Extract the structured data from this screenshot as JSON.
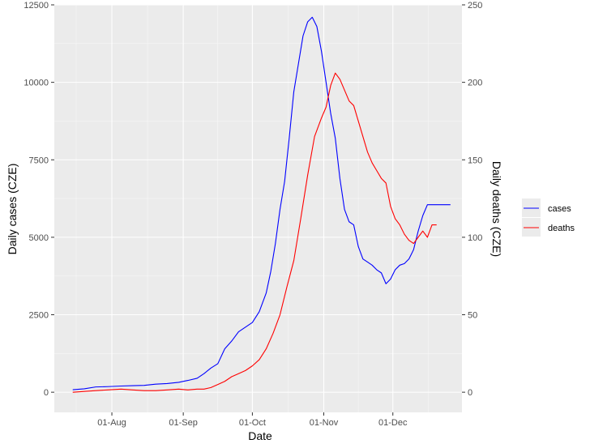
{
  "chart_data": {
    "type": "line",
    "xlabel": "Date",
    "ylabel_left": "Daily cases (CZE)",
    "ylabel_right": "Daily deaths (CZE)",
    "x_range": [
      "2020-07-07",
      "2020-12-31"
    ],
    "ylim_left": [
      -650,
      12500
    ],
    "ylim_right": [
      -13,
      250
    ],
    "x_ticks": [
      {
        "date": "2020-08-01",
        "label": "01-Aug"
      },
      {
        "date": "2020-09-01",
        "label": "01-Sep"
      },
      {
        "date": "2020-10-01",
        "label": "01-Oct"
      },
      {
        "date": "2020-11-01",
        "label": "01-Nov"
      },
      {
        "date": "2020-12-01",
        "label": "01-Dec"
      }
    ],
    "y_ticks_left": [
      0,
      2500,
      5000,
      7500,
      10000,
      12500
    ],
    "y_tick_labels_left": [
      "0",
      "2500",
      "5000",
      "7500",
      "10000",
      "12500"
    ],
    "y_ticks_right": [
      0,
      50,
      100,
      150,
      200,
      250
    ],
    "y_tick_labels_right": [
      "0",
      "50",
      "100",
      "150",
      "200",
      "250"
    ],
    "grid": true,
    "legend_position": "right",
    "series": [
      {
        "name": "cases",
        "axis": "left",
        "color": "#0000ff",
        "x": [
          "2020-07-15",
          "2020-07-20",
          "2020-07-25",
          "2020-07-30",
          "2020-08-05",
          "2020-08-10",
          "2020-08-15",
          "2020-08-20",
          "2020-08-25",
          "2020-08-30",
          "2020-09-03",
          "2020-09-07",
          "2020-09-10",
          "2020-09-13",
          "2020-09-16",
          "2020-09-19",
          "2020-09-22",
          "2020-09-25",
          "2020-09-28",
          "2020-10-01",
          "2020-10-04",
          "2020-10-07",
          "2020-10-09",
          "2020-10-11",
          "2020-10-13",
          "2020-10-15",
          "2020-10-17",
          "2020-10-19",
          "2020-10-21",
          "2020-10-23",
          "2020-10-25",
          "2020-10-27",
          "2020-10-29",
          "2020-10-31",
          "2020-11-02",
          "2020-11-04",
          "2020-11-06",
          "2020-11-08",
          "2020-11-10",
          "2020-11-12",
          "2020-11-14",
          "2020-11-16",
          "2020-11-18",
          "2020-11-20",
          "2020-11-22",
          "2020-11-24",
          "2020-11-26",
          "2020-11-28",
          "2020-11-30",
          "2020-12-02",
          "2020-12-04",
          "2020-12-06",
          "2020-12-08",
          "2020-12-10",
          "2020-12-12",
          "2020-12-14",
          "2020-12-16",
          "2020-12-18",
          "2020-12-20",
          "2020-12-22",
          "2020-12-26"
        ],
        "values": [
          80,
          110,
          170,
          180,
          200,
          210,
          220,
          260,
          280,
          320,
          380,
          450,
          600,
          780,
          920,
          1400,
          1650,
          1950,
          2100,
          2250,
          2600,
          3200,
          3900,
          4800,
          5900,
          6800,
          8200,
          9700,
          10600,
          11500,
          11950,
          12100,
          11800,
          11000,
          10000,
          9000,
          8200,
          6900,
          5900,
          5500,
          5400,
          4700,
          4300,
          4200,
          4100,
          3950,
          3850,
          3500,
          3650,
          3950,
          4100,
          4150,
          4300,
          4600,
          5200,
          5700,
          6050,
          6050,
          6050,
          6050,
          6050
        ]
      },
      {
        "name": "deaths",
        "axis": "right",
        "color": "#ff0000",
        "x": [
          "2020-07-15",
          "2020-07-20",
          "2020-07-25",
          "2020-07-30",
          "2020-08-05",
          "2020-08-10",
          "2020-08-15",
          "2020-08-20",
          "2020-08-25",
          "2020-08-30",
          "2020-09-03",
          "2020-09-07",
          "2020-09-10",
          "2020-09-13",
          "2020-09-16",
          "2020-09-19",
          "2020-09-22",
          "2020-09-25",
          "2020-09-28",
          "2020-10-01",
          "2020-10-04",
          "2020-10-07",
          "2020-10-10",
          "2020-10-13",
          "2020-10-16",
          "2020-10-19",
          "2020-10-22",
          "2020-10-25",
          "2020-10-28",
          "2020-10-31",
          "2020-11-02",
          "2020-11-04",
          "2020-11-06",
          "2020-11-08",
          "2020-11-10",
          "2020-11-12",
          "2020-11-14",
          "2020-11-16",
          "2020-11-18",
          "2020-11-20",
          "2020-11-22",
          "2020-11-24",
          "2020-11-26",
          "2020-11-28",
          "2020-11-30",
          "2020-12-02",
          "2020-12-04",
          "2020-12-06",
          "2020-12-08",
          "2020-12-10",
          "2020-12-12",
          "2020-12-14",
          "2020-12-16",
          "2020-12-18",
          "2020-12-20"
        ],
        "values": [
          0,
          0.5,
          1,
          1.5,
          2,
          1.5,
          1,
          1,
          1.5,
          2,
          1.5,
          2,
          2,
          3,
          5,
          7,
          10,
          12,
          14,
          17,
          21,
          28,
          38,
          50,
          68,
          85,
          112,
          140,
          165,
          177,
          184,
          198,
          206,
          202,
          195,
          188,
          185,
          175,
          165,
          155,
          148,
          143,
          138,
          135,
          120,
          112,
          108,
          102,
          98,
          96,
          100,
          104,
          100,
          108,
          108
        ]
      }
    ]
  }
}
